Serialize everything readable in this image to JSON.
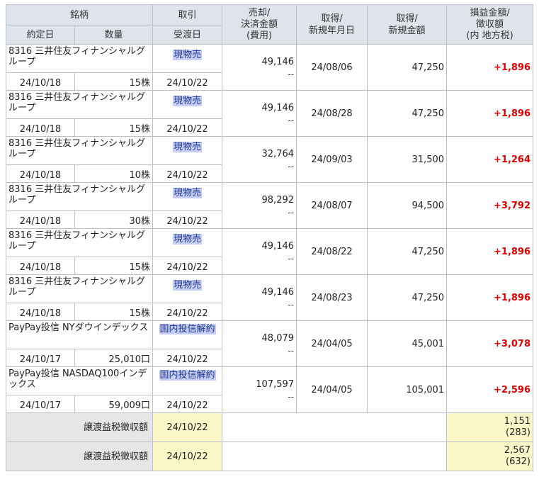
{
  "headers": {
    "row1": [
      "銘柄",
      "取引",
      "売却/\n決済金額\n(費用)",
      "取得/\n新規年月日",
      "取得/\n新規金額",
      "損益金額/\n徴収額\n(内 地方税)"
    ],
    "row2": [
      "約定日",
      "数量",
      "受渡日"
    ]
  },
  "trades": [
    {
      "name": "8316 三井住友フィナンシャルグループ",
      "trade": "現物売",
      "sale": "49,146",
      "sale_sub": "--",
      "acq_date": "24/08/06",
      "acq_amount": "47,250",
      "gain": "+1,896",
      "date": "24/10/18",
      "qty": "15株",
      "delivery": "24/10/22"
    },
    {
      "name": "8316 三井住友フィナンシャルグループ",
      "trade": "現物売",
      "sale": "49,146",
      "sale_sub": "--",
      "acq_date": "24/08/28",
      "acq_amount": "47,250",
      "gain": "+1,896",
      "date": "24/10/18",
      "qty": "15株",
      "delivery": "24/10/22"
    },
    {
      "name": "8316 三井住友フィナンシャルグループ",
      "trade": "現物売",
      "sale": "32,764",
      "sale_sub": "--",
      "acq_date": "24/09/03",
      "acq_amount": "31,500",
      "gain": "+1,264",
      "date": "24/10/18",
      "qty": "10株",
      "delivery": "24/10/22"
    },
    {
      "name": "8316 三井住友フィナンシャルグループ",
      "trade": "現物売",
      "sale": "98,292",
      "sale_sub": "--",
      "acq_date": "24/08/07",
      "acq_amount": "94,500",
      "gain": "+3,792",
      "date": "24/10/18",
      "qty": "30株",
      "delivery": "24/10/22"
    },
    {
      "name": "8316 三井住友フィナンシャルグループ",
      "trade": "現物売",
      "sale": "49,146",
      "sale_sub": "--",
      "acq_date": "24/08/22",
      "acq_amount": "47,250",
      "gain": "+1,896",
      "date": "24/10/18",
      "qty": "15株",
      "delivery": "24/10/22"
    },
    {
      "name": "8316 三井住友フィナンシャルグループ",
      "trade": "現物売",
      "sale": "49,146",
      "sale_sub": "--",
      "acq_date": "24/08/23",
      "acq_amount": "47,250",
      "gain": "+1,896",
      "date": "24/10/18",
      "qty": "15株",
      "delivery": "24/10/22"
    },
    {
      "name": "PayPay投信 NYダウインデックス",
      "trade": "国内投信解約",
      "sale": "48,079",
      "sale_sub": "--",
      "acq_date": "24/04/05",
      "acq_amount": "45,001",
      "gain": "+3,078",
      "date": "24/10/17",
      "qty": "25,010口",
      "delivery": "24/10/22"
    },
    {
      "name": "PayPay投信 NASDAQ100インデックス",
      "trade": "国内投信解約",
      "sale": "107,597",
      "sale_sub": "--",
      "acq_date": "24/04/05",
      "acq_amount": "105,001",
      "gain": "+2,596",
      "date": "24/10/17",
      "qty": "59,009口",
      "delivery": "24/10/22"
    }
  ],
  "summaries": [
    {
      "label": "譲渡益税徴収額",
      "date": "24/10/22",
      "amount": "1,151",
      "local": "(283)"
    },
    {
      "label": "譲渡益税徴収額",
      "date": "24/10/22",
      "amount": "2,567",
      "local": "(632)"
    }
  ]
}
